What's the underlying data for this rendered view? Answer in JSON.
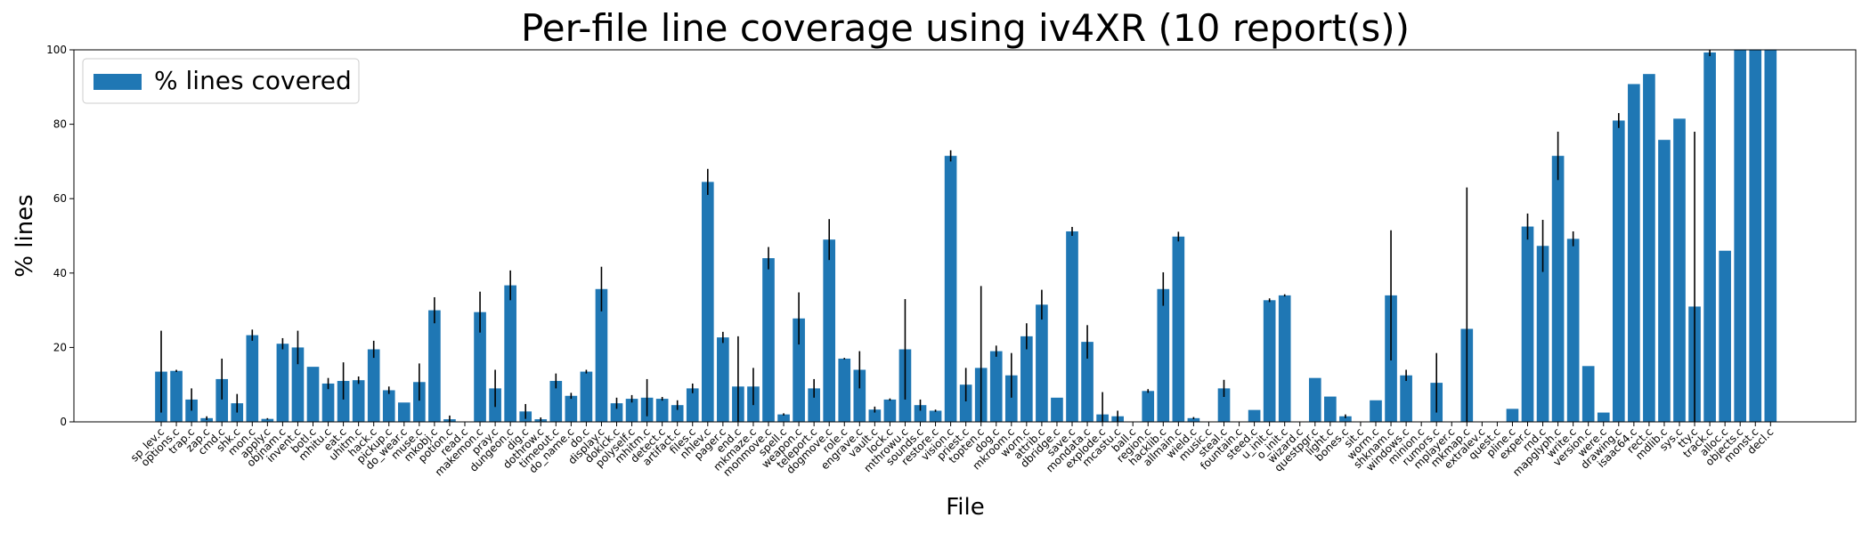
{
  "chart_data": {
    "type": "bar",
    "title": "Per-file line coverage using iv4XR (10 report(s))",
    "xlabel": "File",
    "ylabel": "% lines",
    "categories": [
      "sp_lev.c",
      "options.c",
      "trap.c",
      "zap.c",
      "cmd.c",
      "shk.c",
      "mon.c",
      "apply.c",
      "objnam.c",
      "invent.c",
      "botl.c",
      "mhitu.c",
      "eat.c",
      "uhitm.c",
      "hack.c",
      "pickup.c",
      "do_wear.c",
      "muse.c",
      "mkobj.c",
      "potion.c",
      "read.c",
      "makemon.c",
      "pray.c",
      "dungeon.c",
      "dig.c",
      "dothrow.c",
      "timeout.c",
      "do_name.c",
      "do.c",
      "display.c",
      "dokick.c",
      "polyself.c",
      "mhitm.c",
      "detect.c",
      "artifact.c",
      "files.c",
      "nhlev.c",
      "pager.c",
      "end.c",
      "mkmaze.c",
      "monmove.c",
      "spell.c",
      "weapon.c",
      "teleport.c",
      "dogmove.c",
      "role.c",
      "engrave.c",
      "vault.c",
      "lock.c",
      "mthrowu.c",
      "sounds.c",
      "restore.c",
      "vision.c",
      "priest.c",
      "topten.c",
      "dog.c",
      "mkroom.c",
      "worn.c",
      "attrib.c",
      "dbridge.c",
      "save.c",
      "mondata.c",
      "explode.c",
      "mcastu.c",
      "ball.c",
      "region.c",
      "hacklib.c",
      "allmain.c",
      "wield.c",
      "music.c",
      "steal.c",
      "fountain.c",
      "steed.c",
      "u_init.c",
      "o_init.c",
      "wizard.c",
      "questpgr.c",
      "light.c",
      "bones.c",
      "sit.c",
      "worm.c",
      "shknam.c",
      "windows.c",
      "minion.c",
      "rumors.c",
      "mplayer.c",
      "mkmap.c",
      "extralev.c",
      "quest.c",
      "pline.c",
      "exper.c",
      "rnd.c",
      "mapglyph.c",
      "write.c",
      "version.c",
      "were.c",
      "drawing.c",
      "isaac64.c",
      "rect.c",
      "mdlib.c",
      "sys.c",
      "tty.c",
      "track.c",
      "alloc.c",
      "objects.c",
      "monst.c",
      "decl.c"
    ],
    "series": [
      {
        "name": "% lines covered",
        "color": "#1f77b4",
        "errorbar_color": "#000000",
        "values": [
          13.5,
          13.7,
          6,
          1,
          11.5,
          5,
          23.3,
          0.8,
          21,
          20,
          14.8,
          10.3,
          11,
          11.2,
          19.5,
          8.5,
          5.2,
          10.7,
          30,
          0.7,
          0,
          29.5,
          9,
          36.7,
          2.8,
          0.7,
          11,
          7,
          13.5,
          35.7,
          5,
          6.2,
          6.5,
          6.2,
          4.5,
          9,
          64.5,
          22.7,
          9.5,
          9.5,
          44,
          2,
          27.8,
          9,
          49,
          17,
          14,
          3.3,
          6,
          19.5,
          4.5,
          3,
          71.5,
          10,
          14.5,
          19,
          12.5,
          23,
          31.5,
          6.5,
          51.2,
          21.5,
          2,
          1.5,
          0,
          8.3,
          35.7,
          49.8,
          1,
          0,
          9,
          0,
          3.2,
          32.7,
          34,
          0,
          11.8,
          6.8,
          1.5,
          0,
          5.8,
          34,
          12.5,
          0,
          10.5,
          0,
          25,
          0,
          0,
          3.5,
          52.5,
          47.3,
          71.5,
          49.2,
          15,
          2.5,
          81,
          90.8,
          93.5,
          75.8,
          81.5,
          31,
          99.3,
          46,
          100,
          100,
          100
        ],
        "errors": [
          11,
          0.3,
          3,
          0.5,
          5.5,
          2.5,
          1.5,
          0.2,
          1.5,
          4.5,
          0,
          1.5,
          5,
          1,
          2.3,
          1,
          0,
          5,
          3.5,
          1,
          0,
          5.5,
          5,
          4,
          2,
          0.5,
          2,
          0.8,
          0.5,
          6,
          1.5,
          1,
          5,
          0.5,
          1.3,
          1.3,
          3.5,
          1.5,
          13.5,
          5,
          3,
          0.3,
          7,
          2.5,
          5.5,
          0.2,
          5,
          0.8,
          0.3,
          13.5,
          1.5,
          0.3,
          1.5,
          4.5,
          22,
          1.5,
          6,
          3.5,
          4,
          0,
          1.2,
          4.5,
          6,
          1.5,
          0,
          0.5,
          4.5,
          1.3,
          0.3,
          0,
          2.3,
          0,
          0,
          0.5,
          0.3,
          0,
          0,
          0,
          0.5,
          0,
          0,
          17.5,
          1.5,
          0,
          8,
          0,
          38,
          0,
          0,
          0,
          3.5,
          7,
          6.5,
          2,
          0,
          0,
          2,
          0,
          0,
          0,
          0,
          47,
          1,
          0,
          0,
          0,
          0
        ]
      }
    ],
    "ylim": [
      0,
      100
    ],
    "yticks": [
      0,
      20,
      40,
      60,
      80,
      100
    ],
    "legend": "upper left"
  }
}
